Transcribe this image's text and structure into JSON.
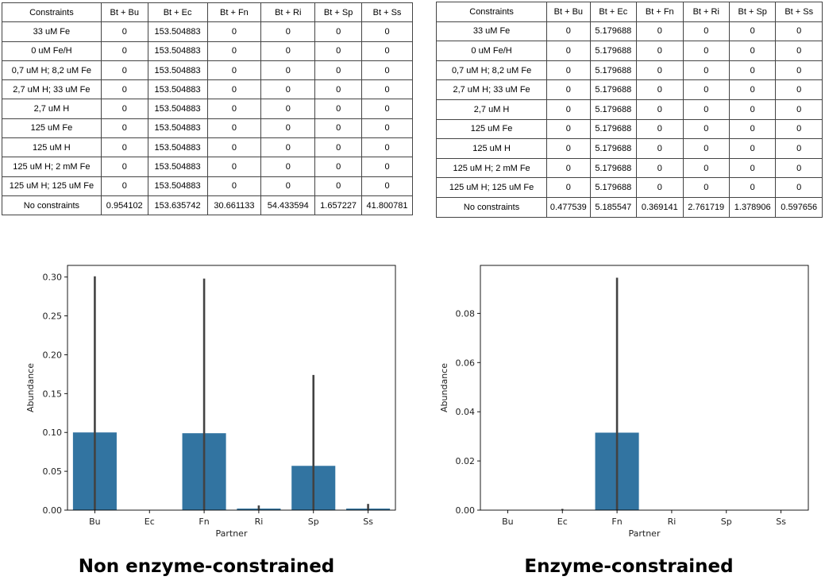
{
  "tables": [
    {
      "headers": [
        "Constraints",
        "Bt + Bu",
        "Bt + Ec",
        "Bt + Fn",
        "Bt + Ri",
        "Bt + Sp",
        "Bt + Ss"
      ],
      "rows": [
        [
          "33 uM Fe",
          "0",
          "153.504883",
          "0",
          "0",
          "0",
          "0"
        ],
        [
          "0 uM Fe/H",
          "0",
          "153.504883",
          "0",
          "0",
          "0",
          "0"
        ],
        [
          "0,7 uM H; 8,2 uM Fe",
          "0",
          "153.504883",
          "0",
          "0",
          "0",
          "0"
        ],
        [
          "2,7 uM H; 33 uM Fe",
          "0",
          "153.504883",
          "0",
          "0",
          "0",
          "0"
        ],
        [
          "2,7 uM H",
          "0",
          "153.504883",
          "0",
          "0",
          "0",
          "0"
        ],
        [
          "125 uM Fe",
          "0",
          "153.504883",
          "0",
          "0",
          "0",
          "0"
        ],
        [
          "125 uM H",
          "0",
          "153.504883",
          "0",
          "0",
          "0",
          "0"
        ],
        [
          "125 uM H; 2 mM Fe",
          "0",
          "153.504883",
          "0",
          "0",
          "0",
          "0"
        ],
        [
          "125 uM H; 125 uM Fe",
          "0",
          "153.504883",
          "0",
          "0",
          "0",
          "0"
        ],
        [
          "No constraints",
          "0.954102",
          "153.635742",
          "30.661133",
          "54.433594",
          "1.657227",
          "41.800781"
        ]
      ]
    },
    {
      "headers": [
        "Constraints",
        "Bt + Bu",
        "Bt + Ec",
        "Bt + Fn",
        "Bt + Ri",
        "Bt + Sp",
        "Bt + Ss"
      ],
      "rows": [
        [
          "33 uM Fe",
          "0",
          "5.179688",
          "0",
          "0",
          "0",
          "0"
        ],
        [
          "0 uM Fe/H",
          "0",
          "5.179688",
          "0",
          "0",
          "0",
          "0"
        ],
        [
          "0,7 uM H; 8,2 uM Fe",
          "0",
          "5.179688",
          "0",
          "0",
          "0",
          "0"
        ],
        [
          "2,7 uM H; 33 uM Fe",
          "0",
          "5.179688",
          "0",
          "0",
          "0",
          "0"
        ],
        [
          "2,7 uM H",
          "0",
          "5.179688",
          "0",
          "0",
          "0",
          "0"
        ],
        [
          "125 uM Fe",
          "0",
          "5.179688",
          "0",
          "0",
          "0",
          "0"
        ],
        [
          "125 uM H",
          "0",
          "5.179688",
          "0",
          "0",
          "0",
          "0"
        ],
        [
          "125 uM H; 2 mM Fe",
          "0",
          "5.179688",
          "0",
          "0",
          "0",
          "0"
        ],
        [
          "125 uM H; 125 uM Fe",
          "0",
          "5.179688",
          "0",
          "0",
          "0",
          "0"
        ],
        [
          "No constraints",
          "0.477539",
          "5.185547",
          "0.369141",
          "2.761719",
          "1.378906",
          "0.597656"
        ]
      ]
    }
  ],
  "chart_data": [
    {
      "type": "bar",
      "caption": "Non enzyme-constrained",
      "categories": [
        "Bu",
        "Ec",
        "Fn",
        "Ri",
        "Sp",
        "Ss"
      ],
      "values": [
        0.1,
        0.0,
        0.099,
        0.002,
        0.057,
        0.002
      ],
      "error_high": [
        0.301,
        0.0,
        0.298,
        0.006,
        0.174,
        0.008
      ],
      "xlabel": "Partner",
      "ylabel": "Abundance",
      "ylim": [
        0,
        0.315
      ],
      "yticks": [
        0.0,
        0.05,
        0.1,
        0.15,
        0.2,
        0.25,
        0.3
      ],
      "ytick_labels": [
        "0.00",
        "0.05",
        "0.10",
        "0.15",
        "0.20",
        "0.25",
        "0.30"
      ],
      "bar_color": "#3274a1",
      "error_color": "#424242",
      "grid": false
    },
    {
      "type": "bar",
      "caption": "Enzyme-constrained",
      "categories": [
        "Bu",
        "Ec",
        "Fn",
        "Ri",
        "Sp",
        "Ss"
      ],
      "values": [
        0.0,
        0.0,
        0.0315,
        0.0,
        0.0,
        0.0
      ],
      "error_high": [
        0.0,
        0.0005,
        0.0945,
        0.0,
        0.0,
        0.0
      ],
      "xlabel": "Partner",
      "ylabel": "Abundance",
      "ylim": [
        0,
        0.0995
      ],
      "yticks": [
        0.0,
        0.02,
        0.04,
        0.06,
        0.08
      ],
      "ytick_labels": [
        "0.00",
        "0.02",
        "0.04",
        "0.06",
        "0.08"
      ],
      "bar_color": "#3274a1",
      "error_color": "#424242",
      "grid": false
    }
  ]
}
